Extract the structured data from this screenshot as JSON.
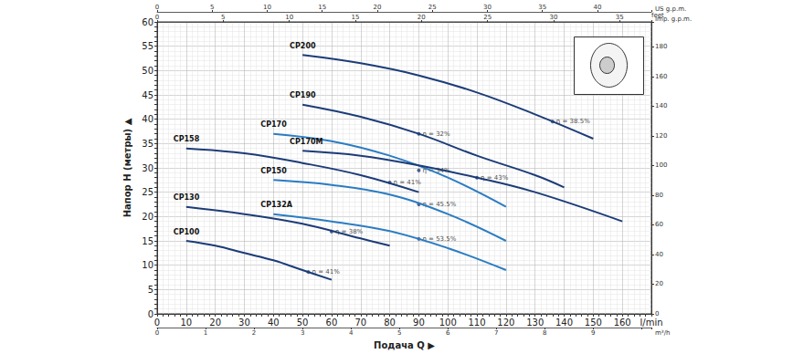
{
  "chart_data": {
    "type": "line",
    "x_label": "Подача Q ▶",
    "y_label": "Напор H (метры) ▲",
    "xlim": [
      0,
      170
    ],
    "xticks": [
      0,
      10,
      20,
      30,
      40,
      50,
      60,
      70,
      80,
      90,
      100,
      110,
      120,
      130,
      140,
      150,
      160,
      {
        "value": 170,
        "label": "l/min"
      }
    ],
    "ylim": [
      0,
      60
    ],
    "yticks": [
      0,
      5,
      10,
      15,
      20,
      25,
      30,
      35,
      40,
      45,
      50,
      55,
      60
    ],
    "y2lim": [
      0,
      196.85
    ],
    "y2ticks": [
      0,
      20,
      40,
      60,
      80,
      100,
      120,
      140,
      160,
      180
    ],
    "y2_label": "feet",
    "extra_x_axes": [
      {
        "label": "m³/h",
        "position": "bottom",
        "lim": [
          0,
          10.2
        ],
        "ticks": [
          0,
          1,
          2,
          3,
          4,
          5,
          6,
          7,
          8,
          9
        ]
      },
      {
        "label": "Imp. g.p.m.",
        "position": "top",
        "lim": [
          0,
          37.4
        ],
        "ticks": [
          0,
          5,
          10,
          15,
          20,
          25,
          30,
          35
        ]
      },
      {
        "label": "US g.p.m.",
        "position": "top",
        "lim": [
          0,
          44.9
        ],
        "ticks": [
          0,
          5,
          10,
          15,
          20,
          25,
          30,
          35,
          40
        ]
      }
    ],
    "grid": true,
    "series": [
      {
        "name": "CP200",
        "color": "#1c3c78",
        "x": [
          50,
          70,
          90,
          110,
          130,
          150
        ],
        "values": [
          53.2,
          51.5,
          49,
          45.5,
          41,
          36
        ]
      },
      {
        "name": "CP190",
        "color": "#1c3c78",
        "x": [
          50,
          70,
          90,
          110,
          130,
          140
        ],
        "values": [
          43,
          40.5,
          37,
          32.5,
          28.5,
          26
        ]
      },
      {
        "name": "CP170",
        "color": "#2b7cc2",
        "x": [
          40,
          60,
          80,
          100,
          120
        ],
        "values": [
          37,
          35.5,
          32.5,
          28,
          22
        ]
      },
      {
        "name": "CP170M",
        "color": "#1c3c78",
        "x": [
          50,
          70,
          90,
          110,
          130,
          160
        ],
        "values": [
          33.5,
          32.5,
          30.5,
          28,
          25,
          19
        ]
      },
      {
        "name": "CP158",
        "color": "#1c3c78",
        "x": [
          10,
          30,
          50,
          70,
          90
        ],
        "values": [
          34,
          33,
          31,
          28.5,
          25
        ]
      },
      {
        "name": "CP150",
        "color": "#2b7cc2",
        "x": [
          40,
          60,
          80,
          100,
          120
        ],
        "values": [
          27.5,
          26.5,
          24.5,
          20.5,
          15
        ]
      },
      {
        "name": "CP130",
        "color": "#1c3c78",
        "x": [
          10,
          30,
          50,
          70,
          80
        ],
        "values": [
          22,
          20.5,
          18.5,
          15.5,
          14
        ]
      },
      {
        "name": "CP132A",
        "color": "#2b7cc2",
        "x": [
          40,
          60,
          80,
          100,
          120
        ],
        "values": [
          20.5,
          19,
          17,
          13.5,
          9
        ]
      },
      {
        "name": "CP100",
        "color": "#1c3c78",
        "x": [
          10,
          20,
          30,
          40,
          50,
          60
        ],
        "values": [
          15,
          14,
          12.5,
          11,
          9,
          7
        ]
      }
    ],
    "annotations": [
      {
        "text": "η = 38.5%",
        "x": 136,
        "y": 39.5
      },
      {
        "text": "η = 32%",
        "x": 90,
        "y": 37
      },
      {
        "text": "η = 43%",
        "x": 110,
        "y": 28
      },
      {
        "text": "η = 41%",
        "x": 80,
        "y": 27
      },
      {
        "text": "η = 34%",
        "x": 90,
        "y": 29.5
      },
      {
        "text": "η = 45.5%",
        "x": 90,
        "y": 22.5
      },
      {
        "text": "η = 38%",
        "x": 60,
        "y": 16.9
      },
      {
        "text": "η = 53.5%",
        "x": 90,
        "y": 15.4
      },
      {
        "text": "η = 41%",
        "x": 52,
        "y": 8.6
      }
    ]
  }
}
